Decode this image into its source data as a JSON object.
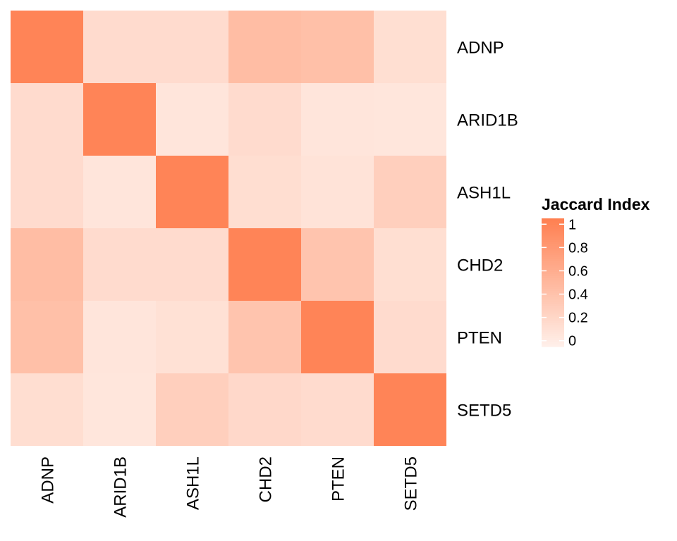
{
  "chart_data": {
    "type": "heatmap",
    "x_labels": [
      "ADNP",
      "ARID1B",
      "ASH1L",
      "CHD2",
      "PTEN",
      "SETD5"
    ],
    "y_labels": [
      "ADNP",
      "ARID1B",
      "ASH1L",
      "CHD2",
      "PTEN",
      "SETD5"
    ],
    "matrix": [
      [
        1.0,
        0.15,
        0.15,
        0.45,
        0.42,
        0.12
      ],
      [
        0.15,
        1.0,
        0.06,
        0.15,
        0.06,
        0.05
      ],
      [
        0.15,
        0.06,
        1.0,
        0.13,
        0.08,
        0.27
      ],
      [
        0.45,
        0.15,
        0.15,
        1.0,
        0.38,
        0.12
      ],
      [
        0.42,
        0.06,
        0.1,
        0.38,
        1.0,
        0.15
      ],
      [
        0.13,
        0.05,
        0.27,
        0.18,
        0.15,
        1.0
      ]
    ],
    "legend": {
      "title": "Jaccard Index",
      "ticks": [
        1,
        0.8,
        0.6,
        0.4,
        0.2,
        0
      ],
      "tick_labels": [
        "1",
        "0.8",
        "0.6",
        "0.4",
        "0.2",
        "0"
      ],
      "range": [
        -0.05,
        1.05
      ],
      "low_color": "#fff0ea",
      "high_color": "#ff7f50"
    }
  }
}
